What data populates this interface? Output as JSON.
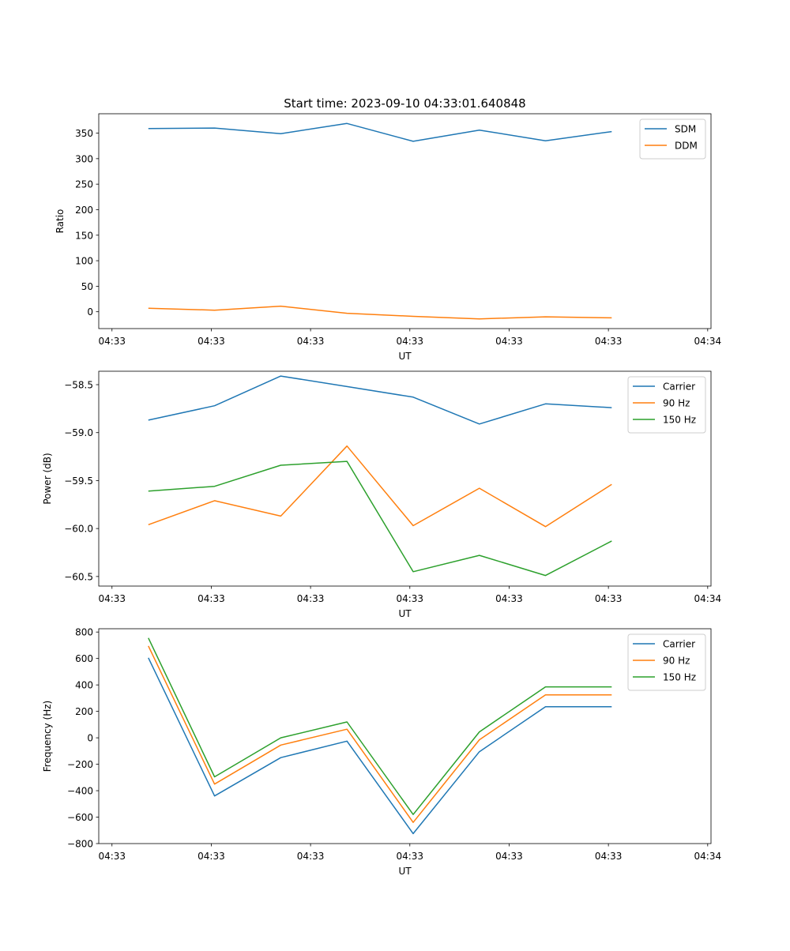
{
  "title": "Start time: 2023-09-10 04:33:01.640848",
  "colors": {
    "c0": "#1f77b4",
    "c1": "#ff7f0e",
    "c2": "#2ca02c"
  },
  "chart_data": [
    {
      "type": "line",
      "xlabel": "UT",
      "ylabel": "Ratio",
      "xlim": [
        -0.75,
        8.5
      ],
      "ylim": [
        -33,
        388
      ],
      "xticks": [
        -0.55,
        0.95,
        2.45,
        3.95,
        5.45,
        6.95,
        8.45
      ],
      "xtick_labels": [
        "04:33",
        "04:33",
        "04:33",
        "04:33",
        "04:33",
        "04:33",
        "04:34"
      ],
      "yticks": [
        0,
        50,
        100,
        150,
        200,
        250,
        300,
        350
      ],
      "ytick_labels": [
        "0",
        "50",
        "100",
        "150",
        "200",
        "250",
        "300",
        "350"
      ],
      "legend": "top-right",
      "series": [
        {
          "name": "SDM",
          "color": "#1f77b4",
          "x": [
            0,
            1,
            2,
            3,
            4,
            5,
            6,
            7
          ],
          "values": [
            359,
            360,
            349,
            369,
            334,
            356,
            335,
            353
          ]
        },
        {
          "name": "DDM",
          "color": "#ff7f0e",
          "x": [
            0,
            1,
            2,
            3,
            4,
            5,
            6,
            7
          ],
          "values": [
            7,
            3,
            11,
            -3,
            -9,
            -14,
            -10,
            -12
          ]
        }
      ]
    },
    {
      "type": "line",
      "xlabel": "UT",
      "ylabel": "Power (dB)",
      "xlim": [
        -0.75,
        8.5
      ],
      "ylim": [
        -60.6,
        -58.36
      ],
      "xticks": [
        -0.55,
        0.95,
        2.45,
        3.95,
        5.45,
        6.95,
        8.45
      ],
      "xtick_labels": [
        "04:33",
        "04:33",
        "04:33",
        "04:33",
        "04:33",
        "04:33",
        "04:34"
      ],
      "yticks": [
        -60.5,
        -60.0,
        -59.5,
        -59.0,
        -58.5
      ],
      "ytick_labels": [
        "−60.5",
        "−60.0",
        "−59.5",
        "−59.0",
        "−58.5"
      ],
      "legend": "top-right",
      "series": [
        {
          "name": "Carrier",
          "color": "#1f77b4",
          "x": [
            0,
            1,
            2,
            3,
            4,
            5,
            6,
            7
          ],
          "values": [
            -58.87,
            -58.72,
            -58.41,
            -58.52,
            -58.63,
            -58.91,
            -58.7,
            -58.74
          ]
        },
        {
          "name": "90 Hz",
          "color": "#ff7f0e",
          "x": [
            0,
            1,
            2,
            3,
            4,
            5,
            6,
            7
          ],
          "values": [
            -59.96,
            -59.71,
            -59.87,
            -59.14,
            -59.97,
            -59.58,
            -59.98,
            -59.54
          ]
        },
        {
          "name": "150 Hz",
          "color": "#2ca02c",
          "x": [
            0,
            1,
            2,
            3,
            4,
            5,
            6,
            7
          ],
          "values": [
            -59.61,
            -59.56,
            -59.34,
            -59.3,
            -60.45,
            -60.28,
            -60.49,
            -60.13
          ]
        }
      ]
    },
    {
      "type": "line",
      "xlabel": "UT",
      "ylabel": "Frequency (Hz)",
      "xlim": [
        -0.75,
        8.5
      ],
      "ylim": [
        -800,
        825
      ],
      "xticks": [
        -0.55,
        0.95,
        2.45,
        3.95,
        5.45,
        6.95,
        8.45
      ],
      "xtick_labels": [
        "04:33",
        "04:33",
        "04:33",
        "04:33",
        "04:33",
        "04:33",
        "04:34"
      ],
      "yticks": [
        -800,
        -600,
        -400,
        -200,
        0,
        200,
        400,
        600,
        800
      ],
      "ytick_labels": [
        "−800",
        "−600",
        "−400",
        "−200",
        "0",
        "200",
        "400",
        "600",
        "800"
      ],
      "legend": "top-right",
      "series": [
        {
          "name": "Carrier",
          "color": "#1f77b4",
          "x": [
            0,
            1,
            2,
            3,
            4,
            5,
            6,
            7
          ],
          "values": [
            605,
            -440,
            -150,
            -25,
            -725,
            -105,
            235,
            235
          ]
        },
        {
          "name": "90 Hz",
          "color": "#ff7f0e",
          "x": [
            0,
            1,
            2,
            3,
            4,
            5,
            6,
            7
          ],
          "values": [
            695,
            -350,
            -55,
            65,
            -640,
            -15,
            325,
            325
          ]
        },
        {
          "name": "150 Hz",
          "color": "#2ca02c",
          "x": [
            0,
            1,
            2,
            3,
            4,
            5,
            6,
            7
          ],
          "values": [
            755,
            -295,
            0,
            120,
            -580,
            45,
            385,
            385
          ]
        }
      ]
    }
  ]
}
